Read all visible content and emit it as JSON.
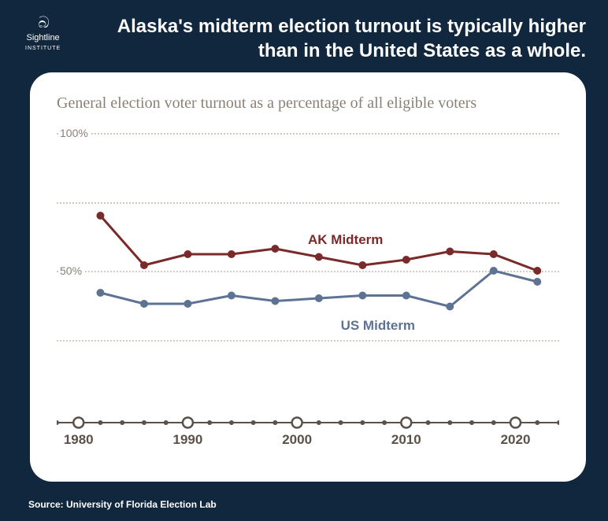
{
  "logo": {
    "name": "Sightline",
    "sub": "INSTITUTE"
  },
  "headline": "Alaska's midterm election turnout is typically higher than in the United States as a whole.",
  "subtitle": "General election voter turnout as a percentage of all eligible voters",
  "source": "Source: University of Florida Election Lab",
  "chart": {
    "type": "line",
    "background_color": "#ffffff",
    "grid_color": "#d0cabf",
    "y": {
      "min": 0,
      "max": 100,
      "ticks": [
        25,
        50,
        75,
        100
      ],
      "labels": [
        {
          "v": 50,
          "text": "50%"
        },
        {
          "v": 100,
          "text": "100%"
        }
      ]
    },
    "x": {
      "min": 1978,
      "max": 2024,
      "decade_marks": [
        1980,
        1990,
        2000,
        2010,
        2020
      ],
      "minor_step": 2
    },
    "series": [
      {
        "name": "AK Midterm",
        "color": "#7a2a2a",
        "line_width": 3,
        "marker_radius": 5,
        "label_pos": {
          "year": 2001,
          "pct": 64
        },
        "points": [
          {
            "year": 1982,
            "pct": 70
          },
          {
            "year": 1986,
            "pct": 52
          },
          {
            "year": 1990,
            "pct": 56
          },
          {
            "year": 1994,
            "pct": 56
          },
          {
            "year": 1998,
            "pct": 58
          },
          {
            "year": 2002,
            "pct": 55
          },
          {
            "year": 2006,
            "pct": 52
          },
          {
            "year": 2010,
            "pct": 54
          },
          {
            "year": 2014,
            "pct": 57
          },
          {
            "year": 2018,
            "pct": 56
          },
          {
            "year": 2022,
            "pct": 50
          }
        ]
      },
      {
        "name": "US Midterm",
        "color": "#5e7393",
        "line_width": 3,
        "marker_radius": 5,
        "label_pos": {
          "year": 2004,
          "pct": 33
        },
        "points": [
          {
            "year": 1982,
            "pct": 42
          },
          {
            "year": 1986,
            "pct": 38
          },
          {
            "year": 1990,
            "pct": 38
          },
          {
            "year": 1994,
            "pct": 41
          },
          {
            "year": 1998,
            "pct": 39
          },
          {
            "year": 2002,
            "pct": 40
          },
          {
            "year": 2006,
            "pct": 41
          },
          {
            "year": 2010,
            "pct": 41
          },
          {
            "year": 2014,
            "pct": 37
          },
          {
            "year": 2018,
            "pct": 50
          },
          {
            "year": 2022,
            "pct": 46
          }
        ]
      }
    ]
  }
}
